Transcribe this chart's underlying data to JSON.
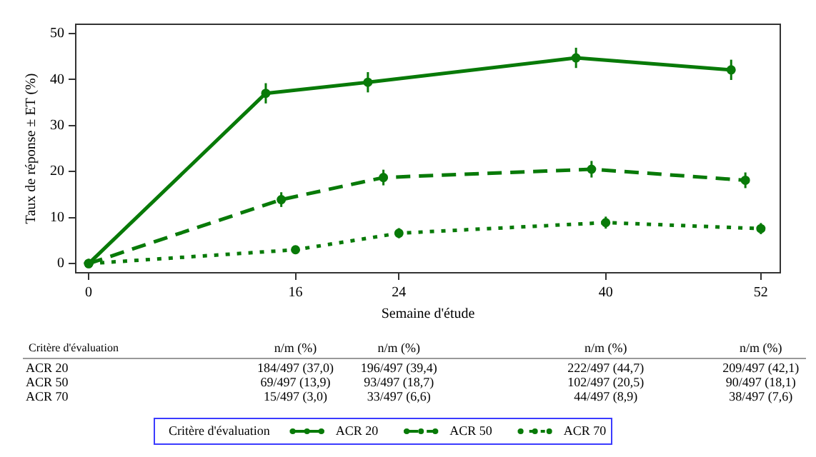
{
  "chart_data": {
    "type": "line",
    "xlabel": "Semaine d'étude",
    "ylabel": "Taux de réponse ± ET (%)",
    "legend_title": "Critère d'évaluation",
    "xlim": [
      -1,
      53.5
    ],
    "xticks": [
      0,
      16,
      24,
      40,
      52
    ],
    "ylim": [
      -2,
      52
    ],
    "yticks": [
      0,
      10,
      20,
      30,
      40,
      50
    ],
    "grid": false,
    "legend": "bottom",
    "marker": "circle",
    "annotations": [
      "Critère d'évaluation",
      "n/m (%)",
      "n/m (%)",
      "n/m (%)",
      "n/m (%)",
      "184/497 (37,0)",
      "196/497 (39,4)",
      "222/497 (44,7)",
      "209/497 (42,1)",
      "69/497 (13,9)",
      "93/497 (18,7)",
      "102/497 (20,5)",
      "90/497 (18,1)",
      "15/497 (3,0)",
      "33/497 (6,6)",
      "44/497 (8,9)",
      "38/497 (7,6)"
    ],
    "series": [
      {
        "name": "ACR 20",
        "color": "#087a08",
        "line_style": "solid",
        "x": [
          0,
          13.7,
          21.6,
          37.7,
          49.7
        ],
        "values": [
          0,
          37.0,
          39.4,
          44.7,
          42.1
        ],
        "errors": [
          null,
          2.2,
          2.2,
          2.2,
          2.2
        ]
      },
      {
        "name": "ACR 50",
        "color": "#087a08",
        "line_style": "dashed",
        "x": [
          0,
          14.9,
          22.8,
          38.9,
          50.8
        ],
        "values": [
          0,
          13.9,
          18.7,
          20.5,
          18.1
        ],
        "errors": [
          null,
          1.6,
          1.7,
          1.8,
          1.7
        ]
      },
      {
        "name": "ACR 70",
        "color": "#087a08",
        "line_style": "dotted",
        "x": [
          0,
          16,
          24,
          40,
          52
        ],
        "values": [
          0,
          3.0,
          6.6,
          8.9,
          7.6
        ],
        "errors": [
          null,
          0.8,
          1.1,
          1.3,
          1.2
        ]
      }
    ]
  }
}
